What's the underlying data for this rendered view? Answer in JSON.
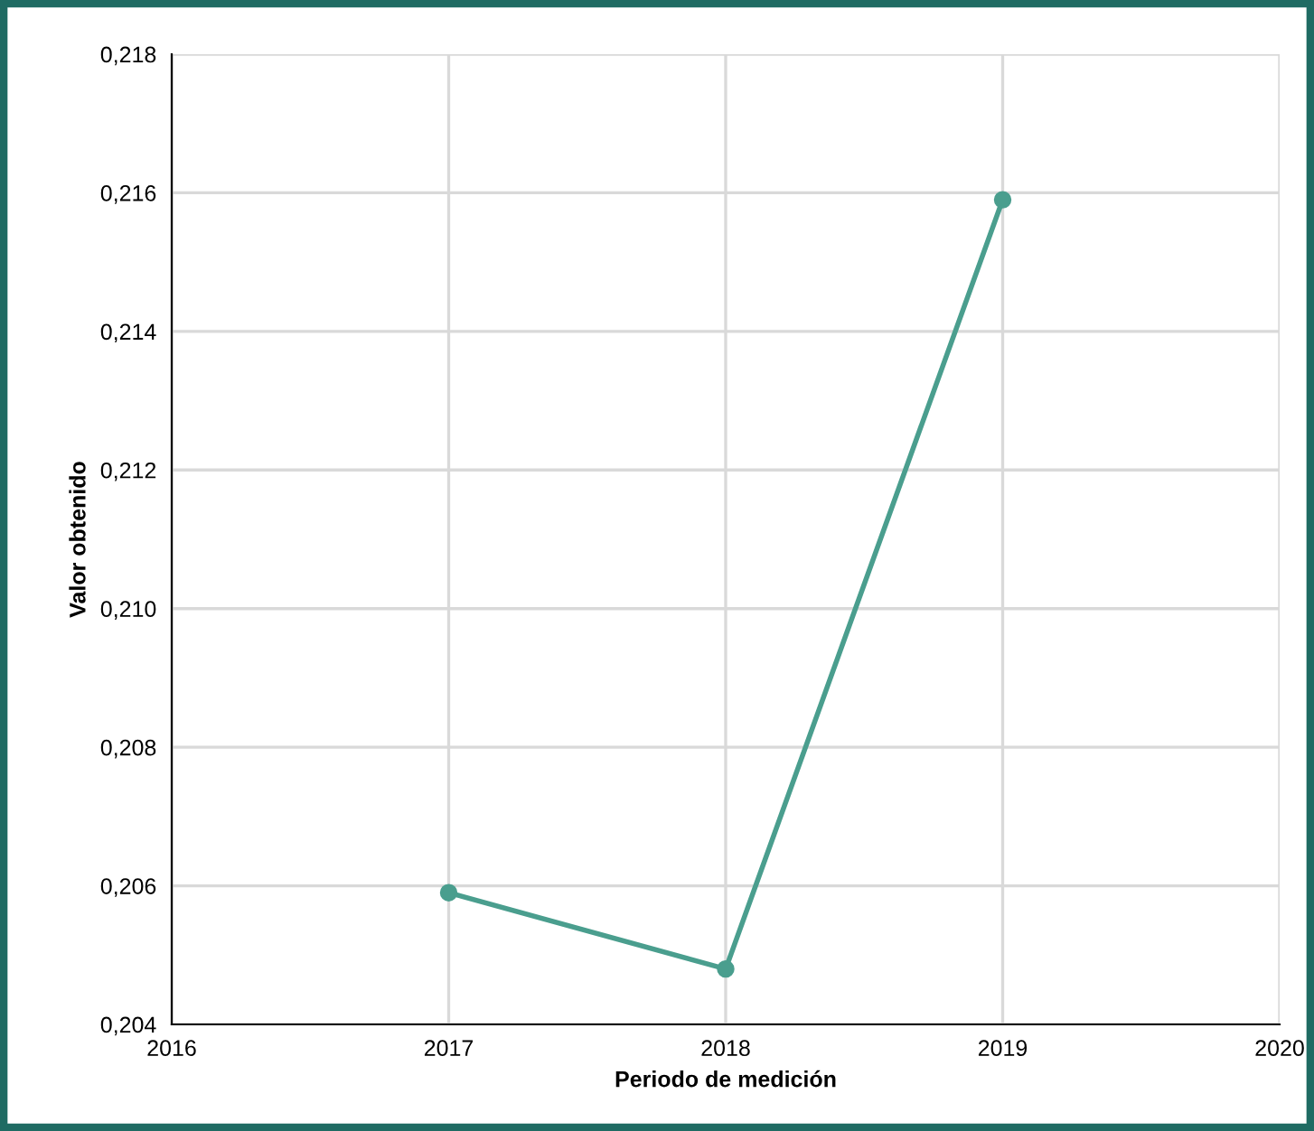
{
  "chart_data": {
    "type": "line",
    "xlabel": "Periodo de medición",
    "ylabel": "Valor obtenido",
    "x": [
      2017,
      2018,
      2019
    ],
    "series": [
      {
        "color": "#4a9e8e",
        "values": [
          0.2059,
          0.2048,
          0.2159
        ]
      }
    ],
    "xlim": [
      2016,
      2020
    ],
    "xticks": [
      2016,
      2017,
      2018,
      2019,
      2020
    ],
    "ylim": [
      0.204,
      0.218
    ],
    "yticks": [
      {
        "value": 0.204,
        "label": "0,204"
      },
      {
        "value": 0.206,
        "label": "0,206"
      },
      {
        "value": 0.208,
        "label": "0,208"
      },
      {
        "value": 0.21,
        "label": "0,210"
      },
      {
        "value": 0.212,
        "label": "0,212"
      },
      {
        "value": 0.214,
        "label": "0,214"
      },
      {
        "value": 0.216,
        "label": "0,216"
      },
      {
        "value": 0.218,
        "label": "0,218"
      }
    ],
    "grid": true,
    "marker": "circle",
    "line_style": "solid",
    "legend": false
  }
}
